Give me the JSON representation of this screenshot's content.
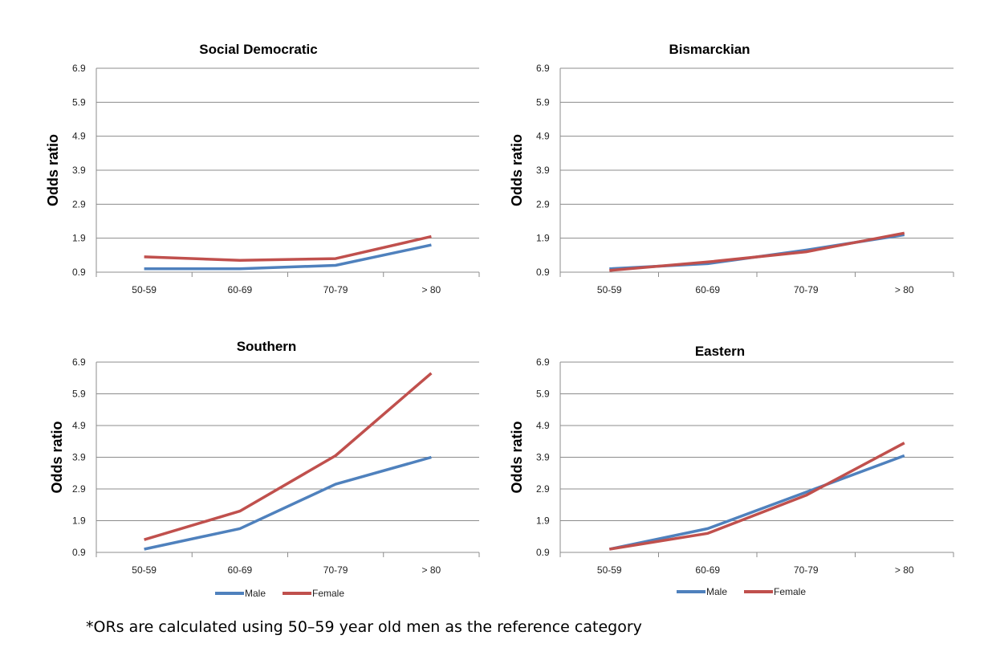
{
  "colors": {
    "male": "#4F81BD",
    "female": "#C0504D"
  },
  "footnote": "*ORs are calculated using 50–59 year old men as the reference category",
  "chart_data": [
    {
      "type": "line",
      "title": "Social Democratic",
      "ylabel": "Odds ratio",
      "xlabel": "",
      "categories": [
        "50-59",
        "60-69",
        "70-79",
        "> 80"
      ],
      "yticks": [
        "0.9",
        "1.9",
        "2.9",
        "3.9",
        "4.9",
        "5.9",
        "6.9"
      ],
      "ylim": [
        0.9,
        6.9
      ],
      "grid": true,
      "legend": null,
      "series": [
        {
          "name": "Male",
          "values": [
            1.0,
            1.0,
            1.1,
            1.7
          ]
        },
        {
          "name": "Female",
          "values": [
            1.35,
            1.25,
            1.3,
            1.95
          ]
        }
      ]
    },
    {
      "type": "line",
      "title": "Bismarckian",
      "ylabel": "Odds ratio",
      "xlabel": "",
      "categories": [
        "50-59",
        "60-69",
        "70-79",
        "> 80"
      ],
      "yticks": [
        "0.9",
        "1.9",
        "2.9",
        "3.9",
        "4.9",
        "5.9",
        "6.9"
      ],
      "ylim": [
        0.9,
        6.9
      ],
      "grid": true,
      "legend": null,
      "series": [
        {
          "name": "Male",
          "values": [
            1.0,
            1.15,
            1.55,
            2.0
          ]
        },
        {
          "name": "Female",
          "values": [
            0.95,
            1.2,
            1.5,
            2.05
          ]
        }
      ]
    },
    {
      "type": "line",
      "title": "Southern",
      "ylabel": "Odds ratio",
      "xlabel": "",
      "categories": [
        "50-59",
        "60-69",
        "70-79",
        "> 80"
      ],
      "yticks": [
        "0.9",
        "1.9",
        "2.9",
        "3.9",
        "4.9",
        "5.9",
        "6.9"
      ],
      "ylim": [
        0.9,
        6.9
      ],
      "grid": true,
      "legend": "bottom",
      "series": [
        {
          "name": "Male",
          "values": [
            1.0,
            1.65,
            3.05,
            3.9
          ]
        },
        {
          "name": "Female",
          "values": [
            1.3,
            2.2,
            3.95,
            6.55
          ]
        }
      ]
    },
    {
      "type": "line",
      "title": "Eastern",
      "ylabel": "Odds ratio",
      "xlabel": "",
      "categories": [
        "50-59",
        "60-69",
        "70-79",
        "> 80"
      ],
      "yticks": [
        "0.9",
        "1.9",
        "2.9",
        "3.9",
        "4.9",
        "5.9",
        "6.9"
      ],
      "ylim": [
        0.9,
        6.9
      ],
      "grid": true,
      "legend": "bottom",
      "series": [
        {
          "name": "Male",
          "values": [
            1.0,
            1.65,
            2.8,
            3.95
          ]
        },
        {
          "name": "Female",
          "values": [
            1.0,
            1.5,
            2.7,
            4.35
          ]
        }
      ]
    }
  ]
}
